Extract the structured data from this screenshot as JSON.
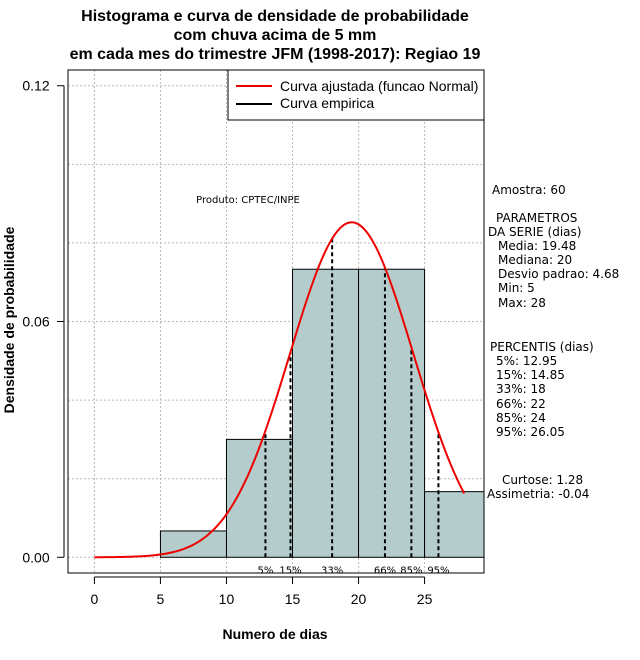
{
  "chart_data": {
    "type": "histogram",
    "title_lines": [
      "Histograma e curva de densidade de probabilidade",
      "com chuva acima de 5 mm",
      "em cada mes do trimestre JFM (1998-2017): Regiao 19"
    ],
    "xlabel": "Numero de dias",
    "ylabel": "Densidade de probabilidade",
    "xlim": [
      -2,
      29.5
    ],
    "ylim": [
      -0.004,
      0.124
    ],
    "xticks": [
      0,
      5,
      10,
      15,
      20,
      25
    ],
    "xtick_labels": [
      "0",
      "5",
      "10",
      "15",
      "20",
      "25"
    ],
    "yticks": [
      0.0,
      0.06,
      0.12
    ],
    "ytick_labels": [
      "0.00",
      "0.06",
      "0.12"
    ],
    "grid_x": [
      0,
      5,
      10,
      15,
      20,
      25
    ],
    "grid_y": [
      0.0,
      0.02,
      0.04,
      0.06,
      0.08,
      0.1,
      0.12
    ],
    "bins": [
      {
        "x0": 5,
        "x1": 10,
        "density": 0.0067
      },
      {
        "x0": 10,
        "x1": 15,
        "density": 0.03
      },
      {
        "x0": 15,
        "x1": 20,
        "density": 0.0733
      },
      {
        "x0": 20,
        "x1": 25,
        "density": 0.0733
      },
      {
        "x0": 25,
        "x1": 30,
        "density": 0.0167
      }
    ],
    "normal_fit": {
      "mean": 19.48,
      "sd": 4.68,
      "from": 0,
      "to": 28
    },
    "percentile_lines": [
      {
        "label": "5%",
        "x": 12.95
      },
      {
        "label": "15%",
        "x": 14.85
      },
      {
        "label": "33%",
        "x": 18
      },
      {
        "label": "66%",
        "x": 22
      },
      {
        "label": "85%",
        "x": 24
      },
      {
        "label": "95%",
        "x": 26.05
      }
    ],
    "legend": {
      "placement": "top-right",
      "entries": [
        {
          "label": "Curva ajustada (funcao Normal)",
          "color": "#ee0000"
        },
        {
          "label": "Curva empirica",
          "color": "#000000"
        }
      ]
    },
    "annotation": "Produto: CPTEC/INPE",
    "side_text": {
      "amostra": "Amostra: 60",
      "param_title_1": "PARAMETROS",
      "param_title_2": "DA SERIE (dias)",
      "media": "Media: 19.48",
      "mediana": "Mediana: 20",
      "desvio": "Desvio padrao: 4.68",
      "min": "Min: 5",
      "max": "Max: 28",
      "percentis_title": "PERCENTIS (dias)",
      "p5": "5%: 12.95",
      "p15": "15%: 14.85",
      "p33": "33%: 18",
      "p66": "66%: 22",
      "p85": "85%: 24",
      "p95": "95%: 26.05",
      "curtose": "Curtose: 1.28",
      "assimetria": "Assimetria: -0.04"
    },
    "colors": {
      "bar_fill": "#b4cccc",
      "curve": "#ee0000",
      "grid": "#bbbbbb",
      "percentile": "#000000"
    }
  }
}
